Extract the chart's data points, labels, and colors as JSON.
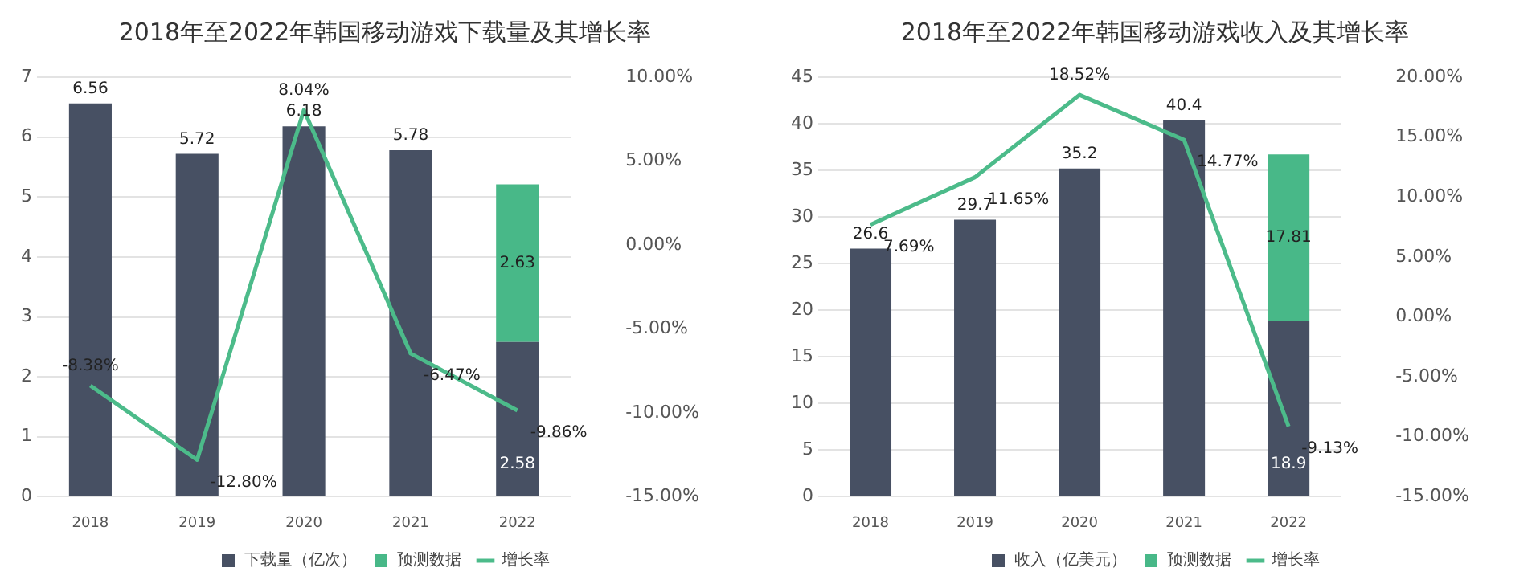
{
  "chart_data": [
    {
      "type": "bar",
      "title": "2018年至2022年韩国移动游戏下载量及其增长率",
      "categories": [
        "2018",
        "2019",
        "2020",
        "2021",
        "2022"
      ],
      "stacked": true,
      "grid": "y",
      "legend": "bottom",
      "ylim": [
        0,
        7
      ],
      "yticks": [
        0,
        1,
        2,
        3,
        4,
        5,
        6,
        7
      ],
      "y2lim": [
        -15,
        10
      ],
      "y2ticks": [
        {
          "value": -15,
          "label": "-15.00%"
        },
        {
          "value": -10,
          "label": "-10.00%"
        },
        {
          "value": -5,
          "label": "-5.00%"
        },
        {
          "value": 0,
          "label": "0.00%"
        },
        {
          "value": 5,
          "label": "5.00%"
        },
        {
          "value": 10,
          "label": "10.00%"
        }
      ],
      "series": [
        {
          "name": "下载量（亿次）",
          "color": "#475063",
          "values": [
            6.56,
            5.72,
            6.18,
            5.78,
            2.58
          ],
          "value_labels": [
            "6.56",
            "5.72",
            "6.18",
            "5.78",
            "2.58"
          ]
        },
        {
          "name": "预测数据",
          "color": "#48b888",
          "values": [
            null,
            null,
            null,
            null,
            2.63
          ],
          "value_labels": [
            null,
            null,
            null,
            null,
            "2.63"
          ]
        },
        {
          "name": "增长率",
          "type": "line",
          "axis": "y2",
          "color": "#4cbb8a",
          "marker": "none",
          "values": [
            -8.38,
            -12.8,
            8.04,
            -6.47,
            -9.86
          ],
          "value_labels": [
            "-8.38%",
            "-12.80%",
            "8.04%",
            "-6.47%",
            "-9.86%"
          ]
        }
      ]
    },
    {
      "type": "bar",
      "title": "2018年至2022年韩国移动游戏收入及其增长率",
      "categories": [
        "2018",
        "2019",
        "2020",
        "2021",
        "2022"
      ],
      "stacked": true,
      "grid": "y",
      "legend": "bottom",
      "ylim": [
        0,
        45
      ],
      "yticks": [
        0,
        5,
        10,
        15,
        20,
        25,
        30,
        35,
        40,
        45
      ],
      "y2lim": [
        -15,
        20
      ],
      "y2ticks": [
        {
          "value": -15,
          "label": "-15.00%"
        },
        {
          "value": -10,
          "label": "-10.00%"
        },
        {
          "value": -5,
          "label": "-5.00%"
        },
        {
          "value": 0,
          "label": "0.00%"
        },
        {
          "value": 5,
          "label": "5.00%"
        },
        {
          "value": 10,
          "label": "10.00%"
        },
        {
          "value": 15,
          "label": "15.00%"
        },
        {
          "value": 20,
          "label": "20.00%"
        }
      ],
      "series": [
        {
          "name": "收入（亿美元）",
          "color": "#475063",
          "values": [
            26.6,
            29.7,
            35.2,
            40.4,
            18.9
          ],
          "value_labels": [
            "26.6",
            "29.7",
            "35.2",
            "40.4",
            "18.9"
          ]
        },
        {
          "name": "预测数据",
          "color": "#48b888",
          "values": [
            null,
            null,
            null,
            null,
            17.81
          ],
          "value_labels": [
            null,
            null,
            null,
            null,
            "17.81"
          ]
        },
        {
          "name": "增长率",
          "type": "line",
          "axis": "y2",
          "color": "#4cbb8a",
          "marker": "none",
          "values": [
            7.69,
            11.65,
            18.52,
            14.77,
            -9.13
          ],
          "value_labels": [
            "7.69%",
            "11.65%",
            "18.52%",
            "14.77%",
            "-9.13%"
          ]
        }
      ]
    }
  ]
}
